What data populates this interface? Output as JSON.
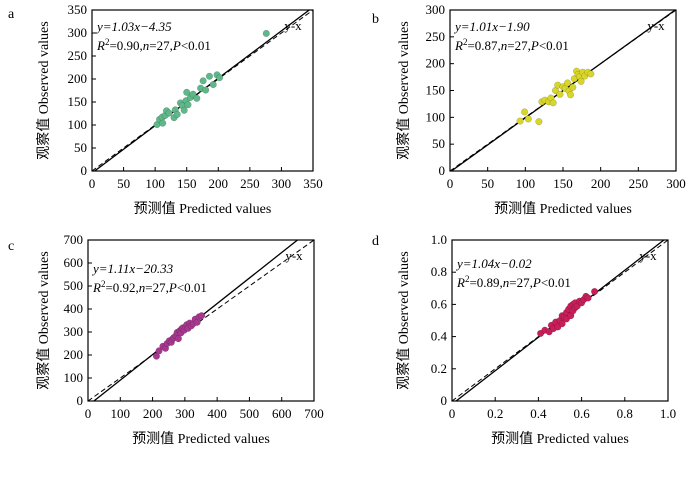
{
  "chart_data": [
    {
      "type": "scatter",
      "panel": "a",
      "xlabel": "预测值  Predicted values",
      "ylabel": "观察值  Observed values",
      "xlim": [
        0,
        350
      ],
      "ylim": [
        0,
        350
      ],
      "xticks": [
        "0",
        "50",
        "100",
        "150",
        "200",
        "250",
        "300",
        "350"
      ],
      "yticks": [
        "0",
        "50",
        "100",
        "150",
        "200",
        "250",
        "300",
        "350"
      ],
      "equation": "y=1.03x−4.35",
      "stats": "R2=0.90,n=27,P<0.01",
      "ref_label": "y-x",
      "fit": {
        "slope": 1.03,
        "intercept": -4.35
      },
      "color": "#5fb88a",
      "points": [
        [
          103,
          101
        ],
        [
          107,
          112
        ],
        [
          111,
          117
        ],
        [
          112,
          104
        ],
        [
          116,
          121
        ],
        [
          118,
          131
        ],
        [
          122,
          126
        ],
        [
          130,
          116
        ],
        [
          132,
          133
        ],
        [
          135,
          123
        ],
        [
          140,
          148
        ],
        [
          143,
          142
        ],
        [
          146,
          132
        ],
        [
          149,
          153
        ],
        [
          150,
          171
        ],
        [
          152,
          144
        ],
        [
          156,
          160
        ],
        [
          160,
          167
        ],
        [
          166,
          158
        ],
        [
          172,
          180
        ],
        [
          176,
          196
        ],
        [
          180,
          176
        ],
        [
          186,
          206
        ],
        [
          192,
          188
        ],
        [
          198,
          209
        ],
        [
          202,
          203
        ],
        [
          276,
          299
        ]
      ]
    },
    {
      "type": "scatter",
      "panel": "b",
      "xlabel": "预测值  Predicted values",
      "ylabel": "观察值  Observed values",
      "xlim": [
        0,
        300
      ],
      "ylim": [
        0,
        300
      ],
      "xticks": [
        "0",
        "50",
        "100",
        "150",
        "200",
        "250",
        "300"
      ],
      "yticks": [
        "0",
        "50",
        "100",
        "150",
        "200",
        "250",
        "300"
      ],
      "equation": "y=1.01x−1.90",
      "stats": "R2=0.87,n=27,P<0.01",
      "ref_label": "y-x",
      "fit": {
        "slope": 1.01,
        "intercept": -1.9
      },
      "color": "#d8d62a",
      "points": [
        [
          93,
          93
        ],
        [
          99,
          110
        ],
        [
          104,
          97
        ],
        [
          118,
          92
        ],
        [
          122,
          129
        ],
        [
          126,
          132
        ],
        [
          131,
          129
        ],
        [
          134,
          136
        ],
        [
          137,
          127
        ],
        [
          140,
          150
        ],
        [
          143,
          160
        ],
        [
          146,
          143
        ],
        [
          150,
          157
        ],
        [
          153,
          154
        ],
        [
          156,
          164
        ],
        [
          158,
          149
        ],
        [
          160,
          142
        ],
        [
          163,
          156
        ],
        [
          165,
          172
        ],
        [
          168,
          186
        ],
        [
          170,
          180
        ],
        [
          172,
          176
        ],
        [
          174,
          167
        ],
        [
          176,
          184
        ],
        [
          179,
          177
        ],
        [
          183,
          184
        ],
        [
          187,
          181
        ]
      ]
    },
    {
      "type": "scatter",
      "panel": "c",
      "xlabel": "预测值  Predicted values",
      "ylabel": "观察值  Observed values",
      "xlim": [
        0,
        700
      ],
      "ylim": [
        0,
        700
      ],
      "xticks": [
        "0",
        "100",
        "200",
        "300",
        "400",
        "500",
        "600",
        "700"
      ],
      "yticks": [
        "0",
        "100",
        "200",
        "300",
        "400",
        "500",
        "600",
        "700"
      ],
      "equation": "y=1.11x−20.33",
      "stats": "R2=0.92,n=27,P<0.01",
      "ref_label": "y-x",
      "fit": {
        "slope": 1.11,
        "intercept": -20.33
      },
      "color": "#a8378f",
      "points": [
        [
          212,
          195
        ],
        [
          220,
          218
        ],
        [
          232,
          238
        ],
        [
          240,
          229
        ],
        [
          245,
          250
        ],
        [
          252,
          262
        ],
        [
          258,
          255
        ],
        [
          262,
          270
        ],
        [
          266,
          276
        ],
        [
          272,
          283
        ],
        [
          276,
          298
        ],
        [
          280,
          271
        ],
        [
          284,
          305
        ],
        [
          288,
          296
        ],
        [
          291,
          315
        ],
        [
          294,
          318
        ],
        [
          298,
          308
        ],
        [
          302,
          322
        ],
        [
          306,
          332
        ],
        [
          310,
          316
        ],
        [
          315,
          339
        ],
        [
          320,
          327
        ],
        [
          326,
          336
        ],
        [
          332,
          356
        ],
        [
          338,
          342
        ],
        [
          344,
          366
        ],
        [
          352,
          371
        ]
      ]
    },
    {
      "type": "scatter",
      "panel": "d",
      "xlabel": "预测值  Predicted values",
      "ylabel": "观察值  Observed values",
      "xlim": [
        0,
        1.0
      ],
      "ylim": [
        0,
        1.0
      ],
      "xticks": [
        "0",
        "0.2",
        "0.4",
        "0.6",
        "0.8",
        "1.0"
      ],
      "yticks": [
        "0",
        "0.2",
        "0.4",
        "0.6",
        "0.8",
        "1.0"
      ],
      "equation": "y=1.04x−0.02",
      "stats": "R2=0.89,n=27,P<0.01",
      "ref_label": "y-x",
      "fit": {
        "slope": 1.04,
        "intercept": -0.02
      },
      "color": "#c81e5a",
      "points": [
        [
          0.41,
          0.42
        ],
        [
          0.43,
          0.44
        ],
        [
          0.45,
          0.43
        ],
        [
          0.46,
          0.47
        ],
        [
          0.47,
          0.45
        ],
        [
          0.48,
          0.49
        ],
        [
          0.49,
          0.46
        ],
        [
          0.5,
          0.5
        ],
        [
          0.51,
          0.48
        ],
        [
          0.51,
          0.53
        ],
        [
          0.52,
          0.52
        ],
        [
          0.53,
          0.51
        ],
        [
          0.53,
          0.55
        ],
        [
          0.54,
          0.57
        ],
        [
          0.55,
          0.53
        ],
        [
          0.55,
          0.59
        ],
        [
          0.56,
          0.56
        ],
        [
          0.56,
          0.6
        ],
        [
          0.57,
          0.58
        ],
        [
          0.57,
          0.61
        ],
        [
          0.58,
          0.59
        ],
        [
          0.59,
          0.62
        ],
        [
          0.6,
          0.61
        ],
        [
          0.61,
          0.63
        ],
        [
          0.62,
          0.65
        ],
        [
          0.63,
          0.64
        ],
        [
          0.66,
          0.68
        ]
      ]
    }
  ]
}
